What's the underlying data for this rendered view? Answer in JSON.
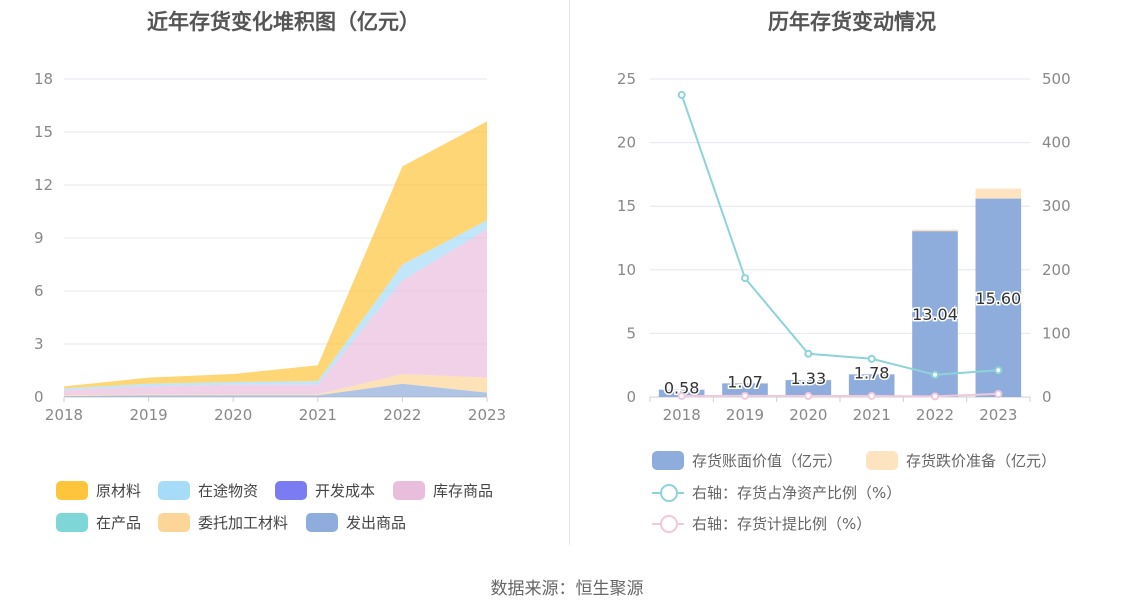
{
  "left_chart": {
    "title": "近年存货变化堆积图（亿元）",
    "legend": [
      {
        "label": "原材料",
        "color": "#fec53c"
      },
      {
        "label": "在途物资",
        "color": "#a6dcf7"
      },
      {
        "label": "开发成本",
        "color": "#7b7bf2"
      },
      {
        "label": "库存商品",
        "color": "#e9bedd"
      },
      {
        "label": "在产品",
        "color": "#7ed6d6"
      },
      {
        "label": "委托加工材料",
        "color": "#fdd598"
      },
      {
        "label": "发出商品",
        "color": "#8eacdc"
      }
    ]
  },
  "right_chart": {
    "title": "历年存货变动情况",
    "legend": [
      {
        "label": "存货账面价值（亿元）",
        "color": "#8eacdc",
        "kind": "box"
      },
      {
        "label": "存货跌价准备（亿元）",
        "color": "#fde3c0",
        "kind": "box"
      },
      {
        "label": "右轴：存货占净资产比例（%）",
        "color": "#8dd3d8",
        "kind": "line"
      },
      {
        "label": "右轴：存货计提比例（%）",
        "color": "#f0c9dd",
        "kind": "line"
      }
    ]
  },
  "source": "数据来源：恒生聚源",
  "chart_data": [
    {
      "type": "area",
      "stacked": true,
      "title": "近年存货变化堆积图（亿元）",
      "x": [
        "2018",
        "2019",
        "2020",
        "2021",
        "2022",
        "2023"
      ],
      "ylim": [
        0,
        18
      ],
      "yticks": [
        0,
        3,
        6,
        9,
        12,
        15,
        18
      ],
      "grid": true,
      "legend_position": "bottom",
      "series": [
        {
          "name": "发出商品",
          "color": "#8eacdc",
          "values": [
            0.05,
            0.1,
            0.1,
            0.1,
            0.75,
            0.25
          ]
        },
        {
          "name": "委托加工材料",
          "color": "#fdd598",
          "values": [
            0.05,
            0.05,
            0.05,
            0.05,
            0.55,
            0.85
          ]
        },
        {
          "name": "在产品",
          "color": "#7ed6d6",
          "values": [
            0.0,
            0.0,
            0.0,
            0.0,
            0.0,
            0.0
          ]
        },
        {
          "name": "库存商品",
          "color": "#e9bedd",
          "values": [
            0.3,
            0.45,
            0.55,
            0.55,
            5.3,
            8.4
          ]
        },
        {
          "name": "开发成本",
          "color": "#7b7bf2",
          "values": [
            0.0,
            0.0,
            0.0,
            0.0,
            0.0,
            0.0
          ]
        },
        {
          "name": "在途物资",
          "color": "#a6dcf7",
          "values": [
            0.1,
            0.15,
            0.15,
            0.2,
            0.9,
            0.5
          ]
        },
        {
          "name": "原材料",
          "color": "#fec53c",
          "values": [
            0.1,
            0.35,
            0.45,
            0.9,
            5.55,
            5.6
          ]
        }
      ]
    },
    {
      "type": "bar",
      "stacked": true,
      "title": "历年存货变动情况",
      "categories": [
        "2018",
        "2019",
        "2020",
        "2021",
        "2022",
        "2023"
      ],
      "ylim": [
        0,
        25
      ],
      "yticks": [
        0,
        5,
        10,
        15,
        20,
        25
      ],
      "y2lim": [
        0,
        500
      ],
      "y2ticks": [
        0,
        100,
        200,
        300,
        400,
        500
      ],
      "grid": true,
      "legend_position": "bottom",
      "series": [
        {
          "name": "存货账面价值（亿元）",
          "color": "#8eacdc",
          "values": [
            0.58,
            1.07,
            1.33,
            1.78,
            13.04,
            15.6
          ],
          "labels": [
            "0.58",
            "1.07",
            "1.33",
            "1.78",
            "13.04",
            "15.60"
          ]
        },
        {
          "name": "存货跌价准备（亿元）",
          "color": "#fde3c0",
          "values": [
            0.01,
            0.02,
            0.02,
            0.03,
            0.12,
            0.78
          ]
        }
      ],
      "line_series": [
        {
          "name": "右轴：存货占净资产比例（%）",
          "color": "#8dd3d8",
          "axis": "right",
          "values": [
            475,
            187,
            68,
            60,
            35,
            42
          ]
        },
        {
          "name": "右轴：存货计提比例（%）",
          "color": "#f0c9dd",
          "axis": "right",
          "values": [
            1.5,
            1.8,
            1.5,
            1.6,
            0.9,
            4.8
          ]
        }
      ]
    }
  ]
}
